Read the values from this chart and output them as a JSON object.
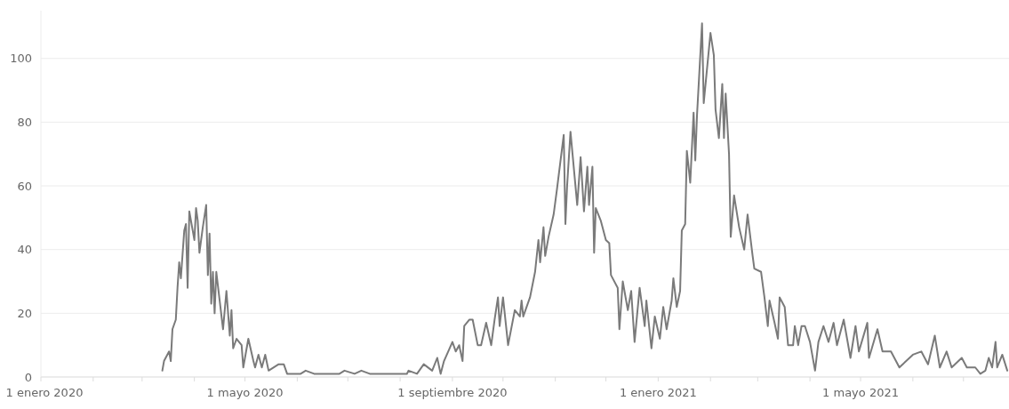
{
  "chart_data": {
    "type": "line",
    "xlim": [
      "2020-01-01",
      "2021-07-28"
    ],
    "ylim": [
      0,
      115
    ],
    "yticks": [
      0,
      20,
      40,
      60,
      80,
      100
    ],
    "xticks": [
      {
        "value": "2020-01-01",
        "label": "1 enero 2020"
      },
      {
        "value": "2020-02-01",
        "label": null
      },
      {
        "value": "2020-03-01",
        "label": null
      },
      {
        "value": "2020-04-01",
        "label": null
      },
      {
        "value": "2020-05-01",
        "label": "1 mayo 2020"
      },
      {
        "value": "2020-06-01",
        "label": null
      },
      {
        "value": "2020-07-01",
        "label": null
      },
      {
        "value": "2020-08-01",
        "label": null
      },
      {
        "value": "2020-09-01",
        "label": "1 septiembre 2020"
      },
      {
        "value": "2020-10-01",
        "label": null
      },
      {
        "value": "2020-11-01",
        "label": null
      },
      {
        "value": "2020-12-01",
        "label": null
      },
      {
        "value": "2021-01-01",
        "label": "1 enero 2021"
      },
      {
        "value": "2021-02-01",
        "label": null
      },
      {
        "value": "2021-03-01",
        "label": null
      },
      {
        "value": "2021-04-01",
        "label": null
      },
      {
        "value": "2021-05-01",
        "label": "1 mayo 2021"
      },
      {
        "value": "2021-06-01",
        "label": null
      },
      {
        "value": "2021-07-01",
        "label": null
      }
    ],
    "grid": "y",
    "marker": "none",
    "line_style": "solid",
    "series": [
      {
        "color": "#7a7a7a",
        "x": [
          "2020-03-13",
          "2020-03-14",
          "2020-03-17",
          "2020-03-18",
          "2020-03-19",
          "2020-03-21",
          "2020-03-22",
          "2020-03-23",
          "2020-03-24",
          "2020-03-26",
          "2020-03-27",
          "2020-03-28",
          "2020-03-29",
          "2020-04-01",
          "2020-04-02",
          "2020-04-03",
          "2020-04-04",
          "2020-04-06",
          "2020-04-08",
          "2020-04-09",
          "2020-04-10",
          "2020-04-11",
          "2020-04-12",
          "2020-04-13",
          "2020-04-14",
          "2020-04-16",
          "2020-04-18",
          "2020-04-20",
          "2020-04-22",
          "2020-04-23",
          "2020-04-24",
          "2020-04-26",
          "2020-04-29",
          "2020-04-30",
          "2020-05-03",
          "2020-05-06",
          "2020-05-07",
          "2020-05-09",
          "2020-05-11",
          "2020-05-13",
          "2020-05-15",
          "2020-05-21",
          "2020-05-24",
          "2020-05-26",
          "2020-06-03",
          "2020-06-06",
          "2020-06-11",
          "2020-06-26",
          "2020-06-29",
          "2020-07-05",
          "2020-07-09",
          "2020-07-14",
          "2020-08-05",
          "2020-08-06",
          "2020-08-11",
          "2020-08-15",
          "2020-08-20",
          "2020-08-23",
          "2020-08-25",
          "2020-08-27",
          "2020-09-01",
          "2020-09-03",
          "2020-09-05",
          "2020-09-07",
          "2020-09-08",
          "2020-09-11",
          "2020-09-13",
          "2020-09-16",
          "2020-09-18",
          "2020-09-21",
          "2020-09-24",
          "2020-09-26",
          "2020-09-28",
          "2020-09-29",
          "2020-10-01",
          "2020-10-04",
          "2020-10-08",
          "2020-10-11",
          "2020-10-12",
          "2020-10-13",
          "2020-10-17",
          "2020-10-20",
          "2020-10-22",
          "2020-10-23",
          "2020-10-25",
          "2020-10-26",
          "2020-10-28",
          "2020-10-31",
          "2020-11-02",
          "2020-11-06",
          "2020-11-07",
          "2020-11-08",
          "2020-11-10",
          "2020-11-14",
          "2020-11-16",
          "2020-11-18",
          "2020-11-20",
          "2020-11-21",
          "2020-11-23",
          "2020-11-24",
          "2020-11-25",
          "2020-11-28",
          "2020-12-01",
          "2020-12-03",
          "2020-12-04",
          "2020-12-08",
          "2020-12-09",
          "2020-12-11",
          "2020-12-14",
          "2020-12-16",
          "2020-12-18",
          "2020-12-21",
          "2020-12-24",
          "2020-12-25",
          "2020-12-28",
          "2020-12-30",
          "2021-01-02",
          "2021-01-04",
          "2021-01-06",
          "2021-01-09",
          "2021-01-10",
          "2021-01-12",
          "2021-01-14",
          "2021-01-15",
          "2021-01-17",
          "2021-01-18",
          "2021-01-20",
          "2021-01-22",
          "2021-01-23",
          "2021-01-24",
          "2021-01-27",
          "2021-01-28",
          "2021-02-01",
          "2021-02-03",
          "2021-02-04",
          "2021-02-06",
          "2021-02-08",
          "2021-02-09",
          "2021-02-10",
          "2021-02-12",
          "2021-02-13",
          "2021-02-15",
          "2021-02-18",
          "2021-02-21",
          "2021-02-23",
          "2021-02-26",
          "2021-02-27",
          "2021-03-03",
          "2021-03-05",
          "2021-03-07",
          "2021-03-08",
          "2021-03-11",
          "2021-03-13",
          "2021-03-14",
          "2021-03-17",
          "2021-03-19",
          "2021-03-22",
          "2021-03-23",
          "2021-03-25",
          "2021-03-27",
          "2021-03-29",
          "2021-04-01",
          "2021-04-04",
          "2021-04-06",
          "2021-04-09",
          "2021-04-12",
          "2021-04-15",
          "2021-04-17",
          "2021-04-21",
          "2021-04-25",
          "2021-04-28",
          "2021-04-30",
          "2021-05-05",
          "2021-05-06",
          "2021-05-11",
          "2021-05-14",
          "2021-05-19",
          "2021-05-24",
          "2021-06-01",
          "2021-06-06",
          "2021-06-10",
          "2021-06-14",
          "2021-06-17",
          "2021-06-21",
          "2021-06-24",
          "2021-06-30",
          "2021-07-03",
          "2021-07-08",
          "2021-07-11",
          "2021-07-14",
          "2021-07-16",
          "2021-07-18",
          "2021-07-20",
          "2021-07-21",
          "2021-07-24",
          "2021-07-27"
        ],
        "values": [
          2,
          5,
          8,
          5,
          15,
          18,
          28,
          36,
          31,
          46,
          48,
          28,
          52,
          43,
          53,
          49,
          39,
          47,
          54,
          32,
          45,
          23,
          33,
          20,
          33,
          24,
          15,
          27,
          13,
          21,
          9,
          12,
          10,
          3,
          12,
          5,
          3,
          7,
          3,
          7,
          2,
          4,
          4,
          1,
          1,
          2,
          1,
          1,
          2,
          1,
          2,
          1,
          1,
          2,
          1,
          4,
          2,
          6,
          1,
          5,
          11,
          8,
          10,
          5,
          16,
          18,
          18,
          10,
          10,
          17,
          10,
          18,
          25,
          16,
          25,
          10,
          21,
          19,
          24,
          19,
          25,
          33,
          43,
          36,
          47,
          38,
          44,
          51,
          59,
          76,
          48,
          60,
          77,
          54,
          69,
          52,
          66,
          54,
          66,
          39,
          53,
          49,
          43,
          42,
          32,
          28,
          15,
          30,
          21,
          27,
          11,
          28,
          16,
          24,
          9,
          19,
          12,
          22,
          15,
          24,
          31,
          22,
          27,
          46,
          48,
          71,
          61,
          83,
          68,
          82,
          111,
          86,
          108,
          101,
          84,
          75,
          92,
          75,
          89,
          70,
          44,
          57,
          47,
          40,
          51,
          38,
          34,
          33,
          25,
          16,
          24,
          17,
          12,
          25,
          22,
          10,
          10,
          16,
          10,
          16,
          16,
          11,
          2,
          11,
          16,
          11,
          17,
          10,
          18,
          6,
          16,
          8,
          17,
          6,
          15,
          8,
          8,
          3,
          7,
          8,
          4,
          13,
          3,
          8,
          3,
          6,
          3,
          3,
          1,
          2,
          6,
          3,
          11,
          3,
          7,
          2
        ]
      }
    ]
  }
}
